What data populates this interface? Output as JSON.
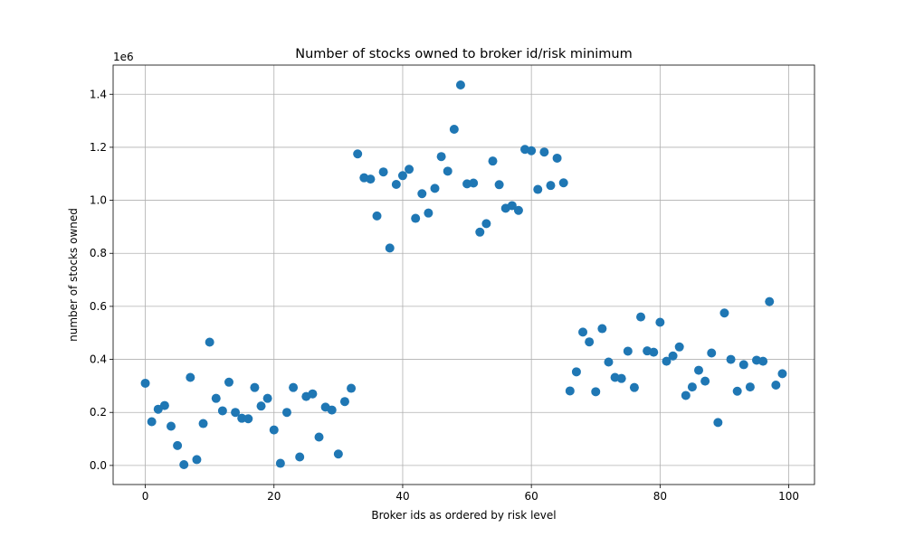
{
  "chart_data": {
    "type": "scatter",
    "title": "Number of stocks owned to broker id/risk minimum",
    "xlabel": "Broker ids as ordered by risk level",
    "ylabel": "number of stocks owned",
    "offset_label": "1e6",
    "xlim": [
      -5,
      104
    ],
    "ylim": [
      -0.072,
      1.51
    ],
    "xticks": [
      0,
      20,
      40,
      60,
      80,
      100
    ],
    "xtick_labels": [
      "0",
      "20",
      "40",
      "60",
      "80",
      "100"
    ],
    "yticks": [
      0.0,
      0.2,
      0.4,
      0.6,
      0.8,
      1.0,
      1.2,
      1.4
    ],
    "ytick_labels": [
      "0.0",
      "0.2",
      "0.4",
      "0.6",
      "0.8",
      "1.0",
      "1.2",
      "1.4"
    ],
    "grid": true,
    "marker_color": "#1f77b4",
    "x": [
      0,
      1,
      2,
      3,
      4,
      5,
      6,
      7,
      8,
      9,
      10,
      11,
      12,
      13,
      14,
      15,
      16,
      17,
      18,
      19,
      20,
      21,
      22,
      23,
      24,
      25,
      26,
      27,
      28,
      29,
      30,
      31,
      32,
      33,
      34,
      35,
      36,
      37,
      38,
      39,
      40,
      41,
      42,
      43,
      44,
      45,
      46,
      47,
      48,
      49,
      50,
      51,
      52,
      53,
      54,
      55,
      56,
      57,
      58,
      59,
      60,
      61,
      62,
      63,
      64,
      65,
      66,
      67,
      68,
      69,
      70,
      71,
      72,
      73,
      74,
      75,
      76,
      77,
      78,
      79,
      80,
      81,
      82,
      83,
      84,
      85,
      86,
      87,
      88,
      89,
      90,
      91,
      92,
      93,
      94,
      95,
      96,
      97,
      98,
      99
    ],
    "y": [
      0.31,
      0.165,
      0.212,
      0.226,
      0.148,
      0.075,
      0.003,
      0.332,
      0.022,
      0.158,
      0.465,
      0.253,
      0.206,
      0.314,
      0.2,
      0.178,
      0.176,
      0.294,
      0.224,
      0.253,
      0.134,
      0.008,
      0.2,
      0.294,
      0.032,
      0.26,
      0.27,
      0.107,
      0.22,
      0.209,
      0.043,
      0.241,
      0.291,
      1.175,
      1.085,
      1.08,
      0.941,
      1.107,
      0.82,
      1.06,
      1.093,
      1.117,
      0.932,
      1.025,
      0.952,
      1.045,
      1.165,
      1.11,
      1.268,
      1.435,
      1.062,
      1.065,
      0.88,
      0.912,
      1.148,
      1.059,
      0.97,
      0.98,
      0.962,
      1.192,
      1.187,
      1.041,
      1.182,
      1.056,
      1.159,
      1.066,
      0.281,
      0.353,
      0.503,
      0.466,
      0.278,
      0.516,
      0.39,
      0.332,
      0.328,
      0.431,
      0.294,
      0.56,
      0.432,
      0.427,
      0.54,
      0.393,
      0.413,
      0.447,
      0.264,
      0.296,
      0.359,
      0.318,
      0.424,
      0.162,
      0.575,
      0.4,
      0.28,
      0.38,
      0.296,
      0.397,
      0.393,
      0.618,
      0.303,
      0.346
    ]
  }
}
